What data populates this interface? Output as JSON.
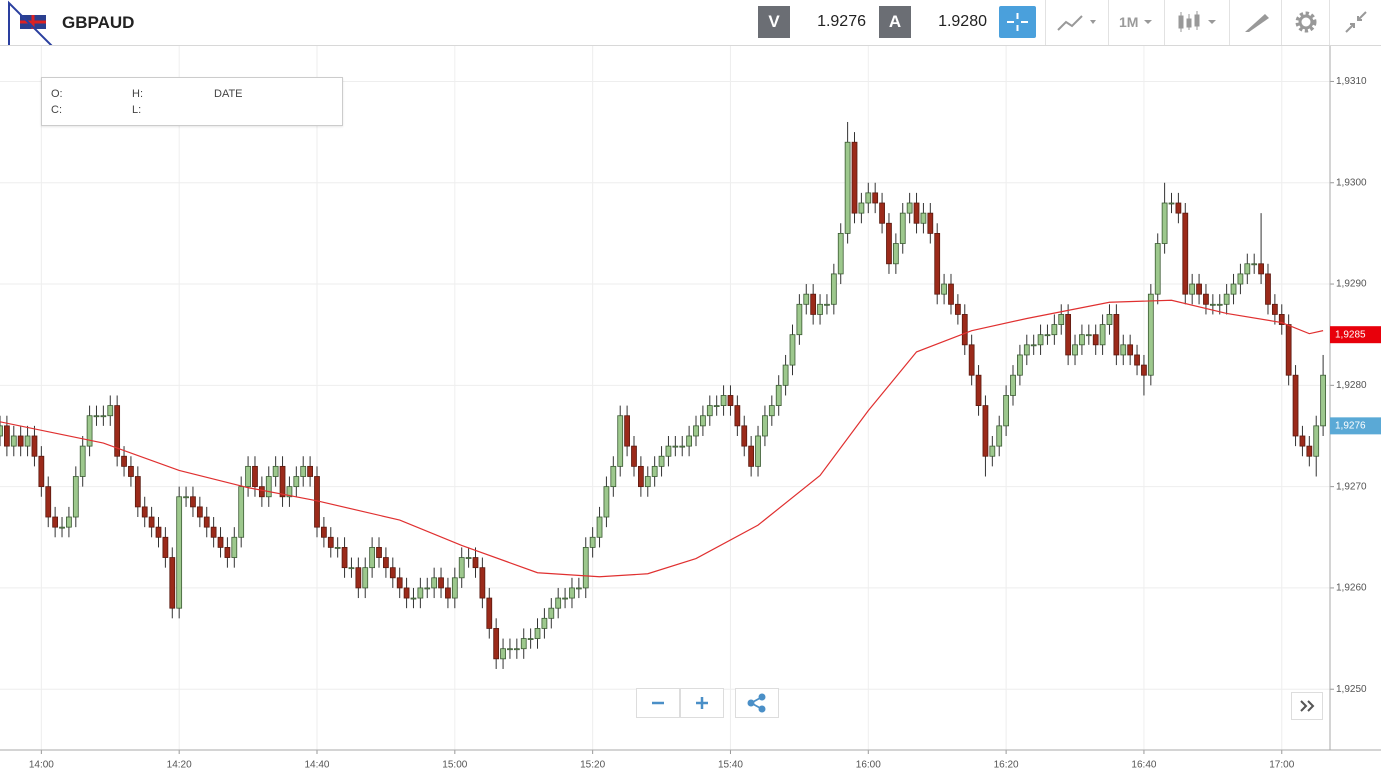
{
  "toolbar": {
    "symbol": "GBPAUD",
    "bid_label": "V",
    "bid": "1.9276",
    "ask_label": "A",
    "ask": "1.9280",
    "timeframe": "1M"
  },
  "ohlc_box": {
    "open_label": "O:",
    "high_label": "H:",
    "date_label": "DATE",
    "close_label": "C:",
    "low_label": "L:"
  },
  "chart_data": {
    "type": "candlestick",
    "up_color": "#9dc88d",
    "down_color": "#9b2a1a",
    "xlim": [
      "13:54",
      "17:07"
    ],
    "xticks": [
      "14:00",
      "14:20",
      "14:40",
      "15:00",
      "15:20",
      "15:40",
      "16:00",
      "16:20",
      "16:40",
      "17:00"
    ],
    "ylim": [
      1.9244,
      1.93135
    ],
    "yticks": [
      {
        "value": 1.925,
        "label": "1,9250"
      },
      {
        "value": 1.926,
        "label": "1,9260"
      },
      {
        "value": 1.927,
        "label": "1,9270"
      },
      {
        "value": 1.928,
        "label": "1,9280"
      },
      {
        "value": 1.929,
        "label": "1,9290"
      },
      {
        "value": 1.93,
        "label": "1,9300"
      },
      {
        "value": 1.931,
        "label": "1,9310"
      }
    ],
    "grid": true,
    "x": [
      "13:54",
      "13:55",
      "13:56",
      "13:57",
      "13:58",
      "13:59",
      "14:00",
      "14:01",
      "14:02",
      "14:03",
      "14:04",
      "14:05",
      "14:06",
      "14:07",
      "14:08",
      "14:09",
      "14:10",
      "14:11",
      "14:12",
      "14:13",
      "14:14",
      "14:15",
      "14:16",
      "14:17",
      "14:18",
      "14:19",
      "14:20",
      "14:21",
      "14:22",
      "14:23",
      "14:24",
      "14:25",
      "14:26",
      "14:27",
      "14:28",
      "14:29",
      "14:30",
      "14:31",
      "14:32",
      "14:33",
      "14:34",
      "14:35",
      "14:36",
      "14:37",
      "14:38",
      "14:39",
      "14:40",
      "14:41",
      "14:42",
      "14:43",
      "14:44",
      "14:45",
      "14:46",
      "14:47",
      "14:48",
      "14:49",
      "14:50",
      "14:51",
      "14:52",
      "14:53",
      "14:54",
      "14:55",
      "14:56",
      "14:57",
      "14:58",
      "14:59",
      "15:00",
      "15:01",
      "15:02",
      "15:03",
      "15:04",
      "15:05",
      "15:06",
      "15:07",
      "15:08",
      "15:09",
      "15:10",
      "15:11",
      "15:12",
      "15:13",
      "15:14",
      "15:15",
      "15:16",
      "15:17",
      "15:18",
      "15:19",
      "15:20",
      "15:21",
      "15:22",
      "15:23",
      "15:24",
      "15:25",
      "15:26",
      "15:27",
      "15:28",
      "15:29",
      "15:30",
      "15:31",
      "15:32",
      "15:33",
      "15:34",
      "15:35",
      "15:36",
      "15:37",
      "15:38",
      "15:39",
      "15:40",
      "15:41",
      "15:42",
      "15:43",
      "15:44",
      "15:45",
      "15:46",
      "15:47",
      "15:48",
      "15:49",
      "15:50",
      "15:51",
      "15:52",
      "15:53",
      "15:54",
      "15:55",
      "15:56",
      "15:57",
      "15:58",
      "15:59",
      "16:00",
      "16:01",
      "16:02",
      "16:03",
      "16:04",
      "16:05",
      "16:06",
      "16:07",
      "16:08",
      "16:09",
      "16:10",
      "16:11",
      "16:12",
      "16:13",
      "16:14",
      "16:15",
      "16:16",
      "16:17",
      "16:18",
      "16:19",
      "16:20",
      "16:21",
      "16:22",
      "16:23",
      "16:24",
      "16:25",
      "16:26",
      "16:27",
      "16:28",
      "16:29",
      "16:30",
      "16:31",
      "16:32",
      "16:33",
      "16:34",
      "16:35",
      "16:36",
      "16:37",
      "16:38",
      "16:39",
      "16:40",
      "16:41",
      "16:42",
      "16:43",
      "16:44",
      "16:45",
      "16:46",
      "16:47",
      "16:48",
      "16:49",
      "16:50",
      "16:51",
      "16:52",
      "16:53",
      "16:54",
      "16:55",
      "16:56",
      "16:57",
      "16:58",
      "16:59",
      "17:00",
      "17:01",
      "17:02",
      "17:03",
      "17:04",
      "17:05",
      "17:06"
    ],
    "open": [
      1.9275,
      1.9276,
      1.9274,
      1.9275,
      1.9274,
      1.9275,
      1.9273,
      1.927,
      1.9267,
      1.9266,
      1.9266,
      1.9267,
      1.9271,
      1.9274,
      1.9277,
      1.9277,
      1.9277,
      1.9278,
      1.9273,
      1.9272,
      1.9271,
      1.9268,
      1.9267,
      1.9266,
      1.9265,
      1.9263,
      1.9258,
      1.9269,
      1.9269,
      1.9268,
      1.9267,
      1.9266,
      1.9265,
      1.9264,
      1.9263,
      1.9265,
      1.927,
      1.9272,
      1.927,
      1.9269,
      1.9271,
      1.9272,
      1.9269,
      1.927,
      1.9271,
      1.9272,
      1.9271,
      1.9266,
      1.9265,
      1.9264,
      1.9264,
      1.9262,
      1.9262,
      1.926,
      1.9262,
      1.9264,
      1.9263,
      1.9262,
      1.9261,
      1.926,
      1.9259,
      1.9259,
      1.926,
      1.926,
      1.9261,
      1.926,
      1.9259,
      1.9261,
      1.9263,
      1.9263,
      1.9262,
      1.9259,
      1.9256,
      1.9253,
      1.9254,
      1.9254,
      1.9254,
      1.9255,
      1.9255,
      1.9256,
      1.9257,
      1.9258,
      1.9259,
      1.9259,
      1.926,
      1.926,
      1.9264,
      1.9265,
      1.9267,
      1.927,
      1.9272,
      1.9277,
      1.9274,
      1.9272,
      1.927,
      1.9271,
      1.9272,
      1.9273,
      1.9274,
      1.9274,
      1.9274,
      1.9275,
      1.9276,
      1.9277,
      1.9278,
      1.9278,
      1.9279,
      1.9278,
      1.9276,
      1.9274,
      1.9272,
      1.9275,
      1.9277,
      1.9278,
      1.928,
      1.9282,
      1.9285,
      1.9288,
      1.9289,
      1.9287,
      1.9288,
      1.9288,
      1.9291,
      1.9295,
      1.9304,
      1.9297,
      1.9298,
      1.9299,
      1.9298,
      1.9296,
      1.9292,
      1.9294,
      1.9297,
      1.9298,
      1.9296,
      1.9297,
      1.9295,
      1.9289,
      1.929,
      1.9288,
      1.9287,
      1.9284,
      1.9281,
      1.9278,
      1.9273,
      1.9274,
      1.9276,
      1.9279,
      1.9281,
      1.9283,
      1.9284,
      1.9284,
      1.9285,
      1.9285,
      1.9286,
      1.9287,
      1.9283,
      1.9284,
      1.9285,
      1.9285,
      1.9284,
      1.9286,
      1.9287,
      1.9283,
      1.9284,
      1.9283,
      1.9282,
      1.9281,
      1.9289,
      1.9294,
      1.9298,
      1.9298,
      1.9297,
      1.9289,
      1.929,
      1.9289,
      1.9288,
      1.9288,
      1.9288,
      1.9289,
      1.929,
      1.9291,
      1.9292,
      1.9292,
      1.9291,
      1.9288,
      1.9287,
      1.9286,
      1.9281,
      1.9275,
      1.9274,
      1.9273,
      1.9276
    ],
    "high": [
      1.9277,
      1.9277,
      1.9276,
      1.9276,
      1.9276,
      1.9276,
      1.9274,
      1.9271,
      1.9268,
      1.9267,
      1.9268,
      1.9272,
      1.9275,
      1.9278,
      1.9278,
      1.9278,
      1.9279,
      1.9279,
      1.9274,
      1.9273,
      1.9272,
      1.9269,
      1.9268,
      1.9267,
      1.9266,
      1.9264,
      1.927,
      1.927,
      1.927,
      1.9269,
      1.9268,
      1.9267,
      1.9266,
      1.9265,
      1.9266,
      1.9271,
      1.9273,
      1.9273,
      1.9271,
      1.9272,
      1.9273,
      1.9273,
      1.9271,
      1.9272,
      1.9273,
      1.9273,
      1.9272,
      1.9267,
      1.9266,
      1.9265,
      1.9265,
      1.9263,
      1.9263,
      1.9263,
      1.9265,
      1.9265,
      1.9264,
      1.9263,
      1.9262,
      1.9261,
      1.926,
      1.9261,
      1.9261,
      1.9262,
      1.9262,
      1.9261,
      1.9262,
      1.9264,
      1.9264,
      1.9264,
      1.9263,
      1.926,
      1.9257,
      1.9255,
      1.9255,
      1.9255,
      1.9256,
      1.9256,
      1.9257,
      1.9258,
      1.9259,
      1.926,
      1.926,
      1.9261,
      1.9261,
      1.9265,
      1.9266,
      1.9268,
      1.9271,
      1.9273,
      1.9278,
      1.9278,
      1.9275,
      1.9273,
      1.9272,
      1.9273,
      1.9274,
      1.9275,
      1.9275,
      1.9275,
      1.9276,
      1.9277,
      1.9278,
      1.9279,
      1.9279,
      1.928,
      1.928,
      1.9279,
      1.9277,
      1.9275,
      1.9276,
      1.9278,
      1.9279,
      1.9281,
      1.9283,
      1.9286,
      1.9289,
      1.929,
      1.929,
      1.9289,
      1.9289,
      1.9292,
      1.9296,
      1.9306,
      1.9305,
      1.9299,
      1.93,
      1.93,
      1.9299,
      1.9297,
      1.9295,
      1.9298,
      1.9299,
      1.9299,
      1.9298,
      1.9298,
      1.9296,
      1.9291,
      1.9291,
      1.9289,
      1.9288,
      1.9285,
      1.9282,
      1.9279,
      1.9275,
      1.9277,
      1.928,
      1.9282,
      1.9284,
      1.9285,
      1.9285,
      1.9286,
      1.9286,
      1.9287,
      1.9288,
      1.9288,
      1.9285,
      1.9286,
      1.9286,
      1.9286,
      1.9287,
      1.9288,
      1.9288,
      1.9285,
      1.9285,
      1.9284,
      1.9283,
      1.929,
      1.9295,
      1.93,
      1.9299,
      1.9299,
      1.9298,
      1.9291,
      1.9291,
      1.929,
      1.9289,
      1.9289,
      1.929,
      1.9291,
      1.9292,
      1.9293,
      1.9293,
      1.9297,
      1.9292,
      1.9289,
      1.9288,
      1.9287,
      1.9282,
      1.9276,
      1.9275,
      1.9277,
      1.9283
    ],
    "low": [
      1.9274,
      1.9273,
      1.9273,
      1.9273,
      1.9273,
      1.9272,
      1.9269,
      1.9266,
      1.9265,
      1.9265,
      1.9265,
      1.9266,
      1.927,
      1.9273,
      1.9276,
      1.9276,
      1.9276,
      1.9272,
      1.9271,
      1.927,
      1.9267,
      1.9266,
      1.9265,
      1.9264,
      1.9262,
      1.9257,
      1.9257,
      1.9268,
      1.9267,
      1.9266,
      1.9265,
      1.9264,
      1.9263,
      1.9262,
      1.9262,
      1.9264,
      1.9269,
      1.9269,
      1.9268,
      1.9268,
      1.927,
      1.9268,
      1.9268,
      1.9269,
      1.927,
      1.927,
      1.9265,
      1.9264,
      1.9263,
      1.9263,
      1.9261,
      1.9261,
      1.9259,
      1.9259,
      1.9261,
      1.9262,
      1.9261,
      1.926,
      1.9259,
      1.9258,
      1.9258,
      1.9258,
      1.9259,
      1.9259,
      1.9259,
      1.9258,
      1.9258,
      1.926,
      1.9262,
      1.9261,
      1.9258,
      1.9255,
      1.9252,
      1.9252,
      1.9253,
      1.9253,
      1.9253,
      1.9254,
      1.9254,
      1.9255,
      1.9256,
      1.9257,
      1.9258,
      1.9258,
      1.9259,
      1.9259,
      1.9263,
      1.9264,
      1.9266,
      1.9269,
      1.9271,
      1.9273,
      1.9271,
      1.9269,
      1.9269,
      1.927,
      1.9271,
      1.9272,
      1.9273,
      1.9273,
      1.9273,
      1.9274,
      1.9275,
      1.9276,
      1.9277,
      1.9277,
      1.9277,
      1.9275,
      1.9273,
      1.9271,
      1.9271,
      1.9274,
      1.9276,
      1.9277,
      1.9279,
      1.9281,
      1.9284,
      1.9287,
      1.9286,
      1.9286,
      1.9287,
      1.9287,
      1.929,
      1.9294,
      1.9296,
      1.9296,
      1.9297,
      1.9297,
      1.9295,
      1.9291,
      1.9291,
      1.9293,
      1.9296,
      1.9295,
      1.9295,
      1.9294,
      1.9288,
      1.9288,
      1.9287,
      1.9286,
      1.9283,
      1.928,
      1.9277,
      1.9271,
      1.9272,
      1.9273,
      1.9275,
      1.9278,
      1.928,
      1.9282,
      1.9283,
      1.9283,
      1.9284,
      1.9284,
      1.9285,
      1.9282,
      1.9282,
      1.9283,
      1.9284,
      1.9283,
      1.9283,
      1.9285,
      1.9282,
      1.9282,
      1.9282,
      1.9281,
      1.9279,
      1.928,
      1.9288,
      1.9293,
      1.9297,
      1.9296,
      1.9288,
      1.9288,
      1.9288,
      1.9287,
      1.9287,
      1.9287,
      1.9287,
      1.9288,
      1.9289,
      1.929,
      1.9291,
      1.929,
      1.9287,
      1.9286,
      1.9285,
      1.928,
      1.9274,
      1.9273,
      1.9272,
      1.9271,
      1.9275
    ],
    "close": [
      1.9276,
      1.9274,
      1.9275,
      1.9274,
      1.9275,
      1.9273,
      1.927,
      1.9267,
      1.9266,
      1.9266,
      1.9267,
      1.9271,
      1.9274,
      1.9277,
      1.9277,
      1.9277,
      1.9278,
      1.9273,
      1.9272,
      1.9271,
      1.9268,
      1.9267,
      1.9266,
      1.9265,
      1.9263,
      1.9258,
      1.9269,
      1.9269,
      1.9268,
      1.9267,
      1.9266,
      1.9265,
      1.9264,
      1.9263,
      1.9265,
      1.927,
      1.9272,
      1.927,
      1.9269,
      1.9271,
      1.9272,
      1.9269,
      1.927,
      1.9271,
      1.9272,
      1.9271,
      1.9266,
      1.9265,
      1.9264,
      1.9264,
      1.9262,
      1.9262,
      1.926,
      1.9262,
      1.9264,
      1.9263,
      1.9262,
      1.9261,
      1.926,
      1.9259,
      1.9259,
      1.926,
      1.926,
      1.9261,
      1.926,
      1.9259,
      1.9261,
      1.9263,
      1.9263,
      1.9262,
      1.9259,
      1.9256,
      1.9253,
      1.9254,
      1.9254,
      1.9254,
      1.9255,
      1.9255,
      1.9256,
      1.9257,
      1.9258,
      1.9259,
      1.9259,
      1.926,
      1.926,
      1.9264,
      1.9265,
      1.9267,
      1.927,
      1.9272,
      1.9277,
      1.9274,
      1.9272,
      1.927,
      1.9271,
      1.9272,
      1.9273,
      1.9274,
      1.9274,
      1.9274,
      1.9275,
      1.9276,
      1.9277,
      1.9278,
      1.9278,
      1.9279,
      1.9278,
      1.9276,
      1.9274,
      1.9272,
      1.9275,
      1.9277,
      1.9278,
      1.928,
      1.9282,
      1.9285,
      1.9288,
      1.9289,
      1.9287,
      1.9288,
      1.9288,
      1.9291,
      1.9295,
      1.9304,
      1.9297,
      1.9298,
      1.9299,
      1.9298,
      1.9296,
      1.9292,
      1.9294,
      1.9297,
      1.9298,
      1.9296,
      1.9297,
      1.9295,
      1.9289,
      1.929,
      1.9288,
      1.9287,
      1.9284,
      1.9281,
      1.9278,
      1.9273,
      1.9274,
      1.9276,
      1.9279,
      1.9281,
      1.9283,
      1.9284,
      1.9284,
      1.9285,
      1.9285,
      1.9286,
      1.9287,
      1.9283,
      1.9284,
      1.9285,
      1.9285,
      1.9284,
      1.9286,
      1.9287,
      1.9283,
      1.9284,
      1.9283,
      1.9282,
      1.9281,
      1.9289,
      1.9294,
      1.9298,
      1.9298,
      1.9297,
      1.9289,
      1.929,
      1.9289,
      1.9288,
      1.9288,
      1.9288,
      1.9289,
      1.929,
      1.9291,
      1.9292,
      1.9292,
      1.9291,
      1.9288,
      1.9287,
      1.9286,
      1.9281,
      1.9275,
      1.9274,
      1.9273,
      1.9276,
      1.9281
    ],
    "moving_average": {
      "color": "#e03030",
      "x": [
        "13:54",
        "14:09",
        "14:20",
        "14:30",
        "14:40",
        "14:52",
        "15:01",
        "15:12",
        "15:21",
        "15:28",
        "15:35",
        "15:44",
        "15:53",
        "16:00",
        "16:07",
        "16:15",
        "16:23",
        "16:35",
        "16:44",
        "16:52",
        "17:00",
        "17:04",
        "17:06"
      ],
      "values": [
        1.92764,
        1.92743,
        1.92716,
        1.92699,
        1.92686,
        1.92667,
        1.92642,
        1.92615,
        1.92611,
        1.92614,
        1.92629,
        1.92662,
        1.92711,
        1.92775,
        1.92833,
        1.92854,
        1.92866,
        1.92882,
        1.92884,
        1.92871,
        1.92862,
        1.92851,
        1.92854
      ]
    },
    "price_markers": [
      {
        "value": 1.9285,
        "label": "1,9285",
        "color": "#e8000b"
      },
      {
        "value": 1.9276,
        "label": "1,9276",
        "color": "#5aa9d6"
      }
    ]
  }
}
